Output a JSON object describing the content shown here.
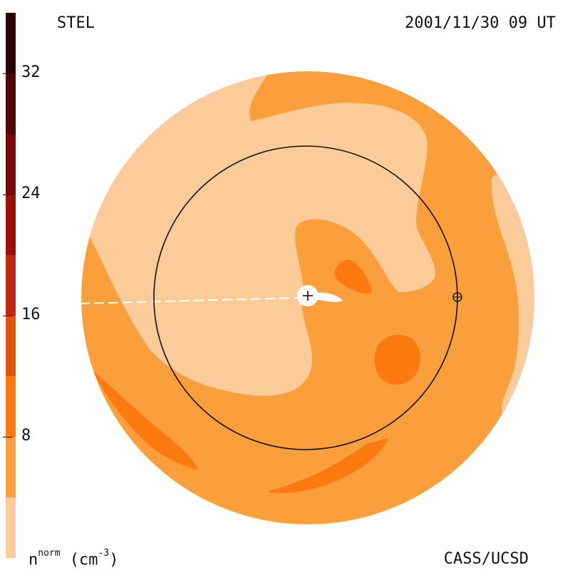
{
  "header": {
    "instrument": "STEL",
    "datetime": "2001/11/30 09 UT"
  },
  "footer": {
    "units_base": "n",
    "units_sup": "norm",
    "units_rest": " (cm",
    "units_exp": "-3",
    "units_close": ")",
    "credit": "CASS/UCSD"
  },
  "chart_data": {
    "type": "heatmap",
    "title": "STEL",
    "subtitle": "2001/11/30 09 UT",
    "colorbar": {
      "label": "n^norm (cm^-3)",
      "range": [
        0,
        36
      ],
      "ticks": [
        8,
        16,
        24,
        32
      ],
      "levels": [
        {
          "from": 0,
          "to": 4,
          "color": "#FBCB9A"
        },
        {
          "from": 4,
          "to": 8,
          "color": "#FB9E3C"
        },
        {
          "from": 8,
          "to": 12,
          "color": "#FC7A10"
        },
        {
          "from": 12,
          "to": 16,
          "color": "#E3550E"
        },
        {
          "from": 16,
          "to": 20,
          "color": "#C42610"
        },
        {
          "from": 20,
          "to": 24,
          "color": "#9E0E0A"
        },
        {
          "from": 24,
          "to": 28,
          "color": "#7A0808"
        },
        {
          "from": 28,
          "to": 32,
          "color": "#500505"
        },
        {
          "from": 32,
          "to": 36,
          "color": "#2A0303"
        }
      ]
    },
    "regions": [
      {
        "name": "background",
        "level": "4-8"
      },
      {
        "name": "low-density lobe",
        "level": "0-4"
      },
      {
        "name": "enhanced patches",
        "level": "8-12"
      }
    ],
    "markers": [
      "Sun",
      "Earth"
    ],
    "reference_circle": "Earth orbit (1 AU)"
  }
}
